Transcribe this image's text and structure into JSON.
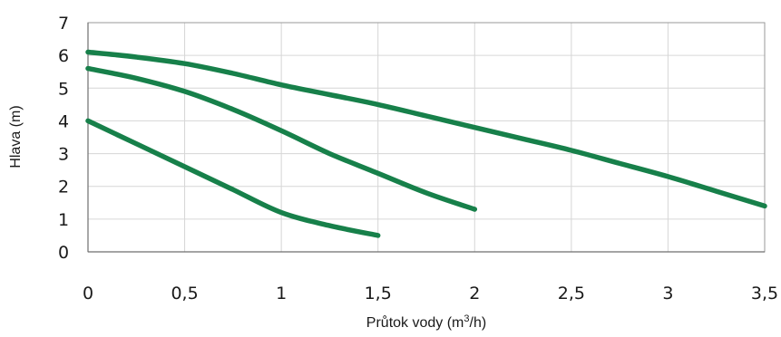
{
  "chart_data": {
    "type": "line",
    "xlabel": {
      "main": "Průtok vody (m",
      "sup": "3",
      "tail": "/h)"
    },
    "ylabel": "Hlava (m)",
    "xlim": [
      0,
      3.5
    ],
    "ylim": [
      0,
      7
    ],
    "x_ticks": [
      0,
      0.5,
      1,
      1.5,
      2,
      2.5,
      3,
      3.5
    ],
    "x_tick_labels": [
      "0",
      "0,5",
      "1",
      "1,5",
      "2",
      "2,5",
      "3",
      "3,5"
    ],
    "y_ticks": [
      0,
      1,
      2,
      3,
      4,
      5,
      6,
      7
    ],
    "y_tick_labels": [
      "0",
      "1",
      "2",
      "3",
      "4",
      "5",
      "6",
      "7"
    ],
    "grid": true,
    "series_color": "#17804a",
    "series": [
      {
        "x": [
          0,
          0.25,
          0.5,
          0.75,
          1.0,
          1.25,
          1.5,
          1.75,
          2.0,
          2.25,
          2.5,
          2.75,
          3.0,
          3.25,
          3.5
        ],
        "y": [
          6.1,
          5.95,
          5.75,
          5.45,
          5.1,
          4.8,
          4.5,
          4.15,
          3.8,
          3.45,
          3.1,
          2.7,
          2.3,
          1.85,
          1.4
        ]
      },
      {
        "x": [
          0,
          0.25,
          0.5,
          0.75,
          1.0,
          1.25,
          1.5,
          1.75,
          2.0
        ],
        "y": [
          5.6,
          5.3,
          4.9,
          4.35,
          3.7,
          3.0,
          2.4,
          1.8,
          1.3
        ]
      },
      {
        "x": [
          0,
          0.25,
          0.5,
          0.75,
          1.0,
          1.25,
          1.5
        ],
        "y": [
          4.0,
          3.3,
          2.6,
          1.9,
          1.2,
          0.8,
          0.5
        ]
      }
    ]
  }
}
